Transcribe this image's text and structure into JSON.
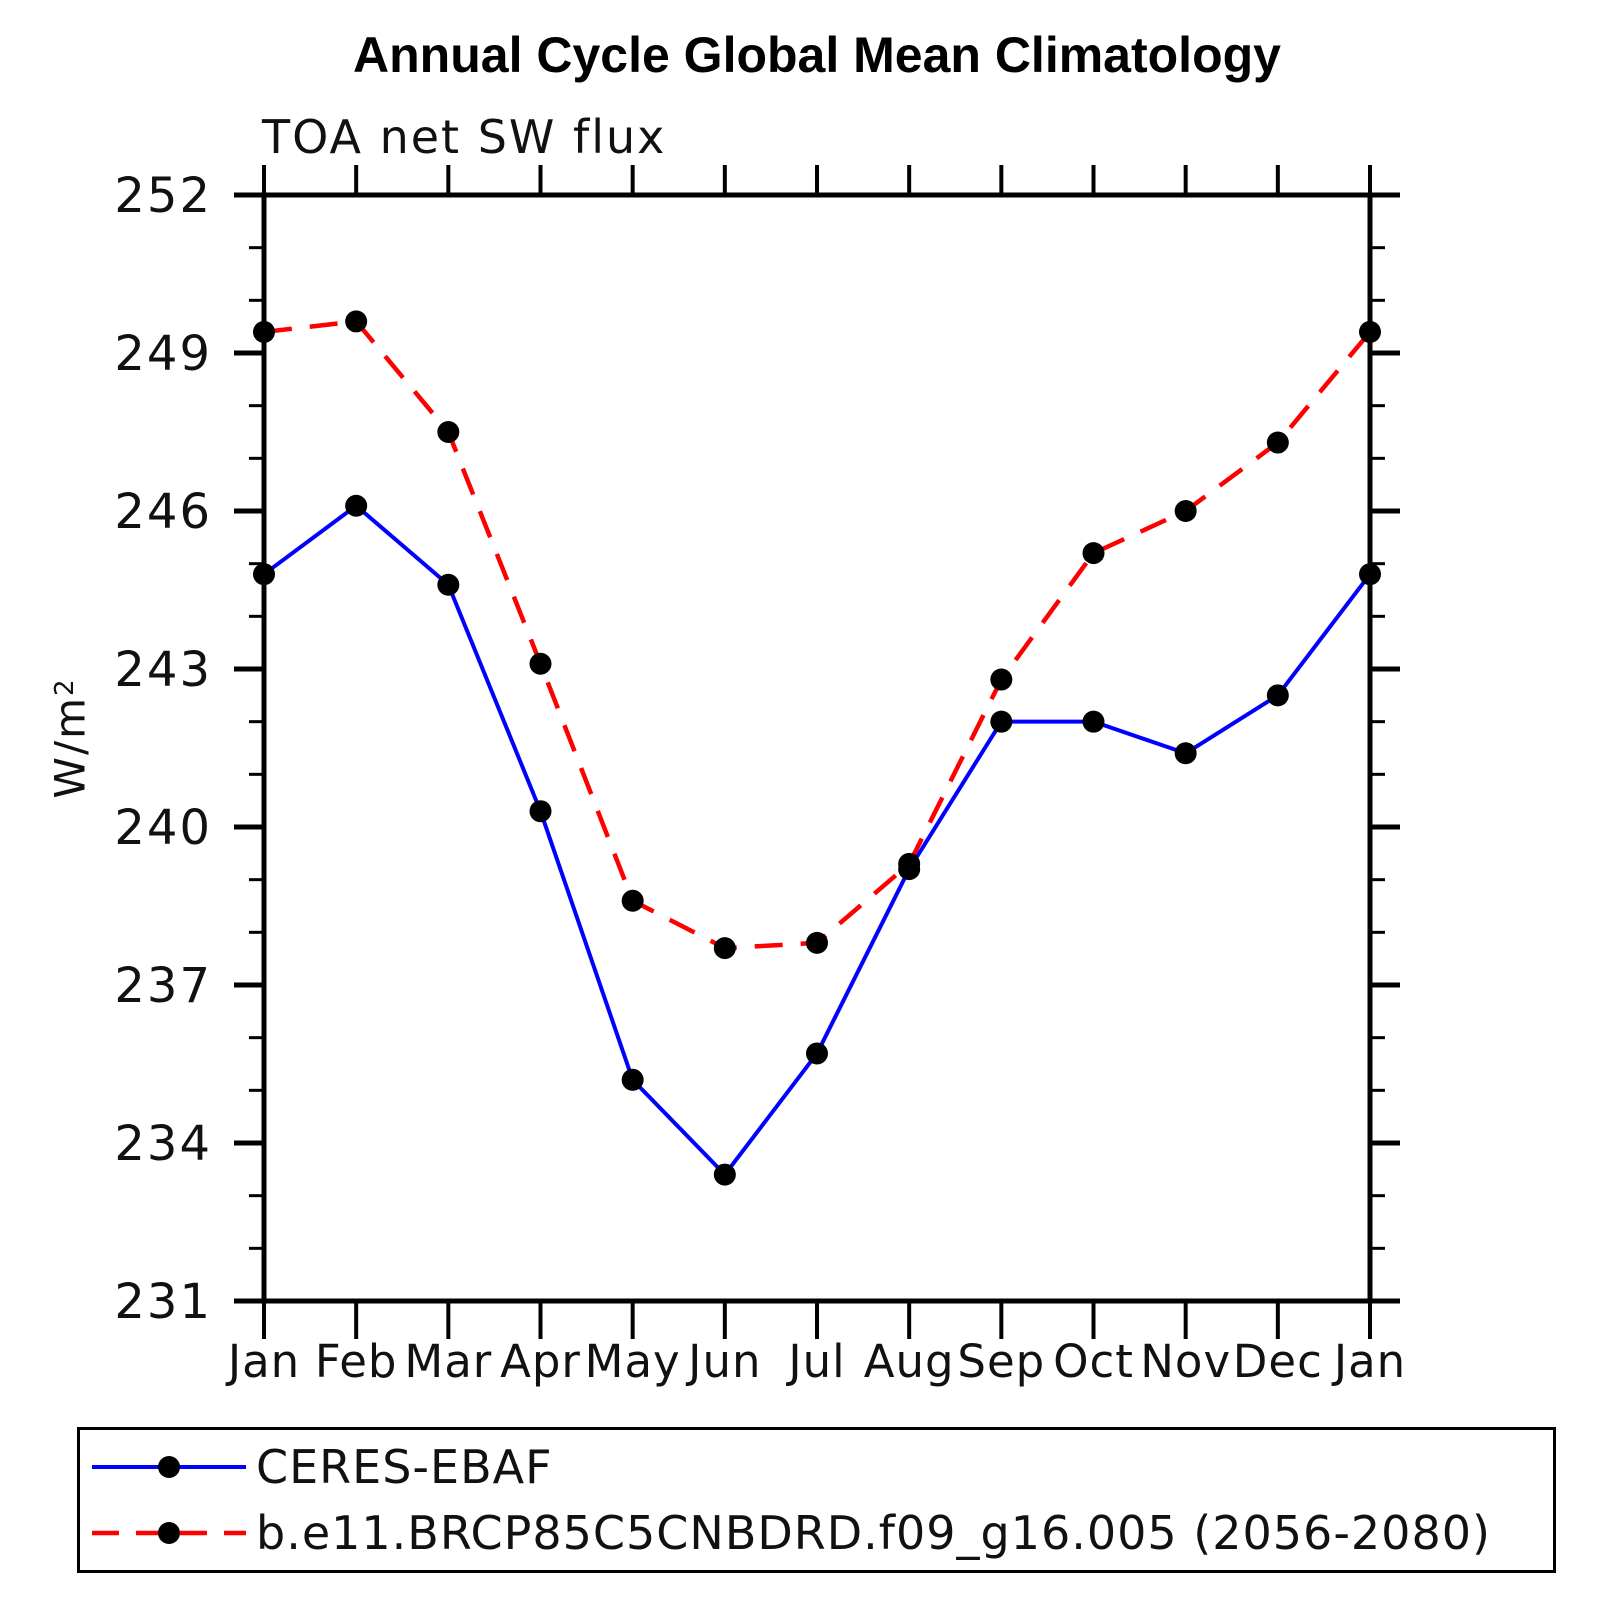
{
  "title": "Annual Cycle Global Mean Climatology",
  "subtitle": "TOA net SW flux",
  "y_axis": {
    "label_base": "W/m",
    "label_exponent": "2"
  },
  "legend": {
    "items": [
      {
        "label": "CERES-EBAF"
      },
      {
        "label": "b.e11.BRCP85C5CNBDRD.f09_g16.005 (2056-2080)"
      }
    ]
  },
  "colors": {
    "obs_line": "#0000ff",
    "model_line": "#ff0000",
    "marker": "#000000",
    "axis": "#000000"
  },
  "chart_data": {
    "type": "line",
    "title": "Annual Cycle Global Mean Climatology",
    "subtitle": "TOA net SW flux",
    "xlabel": "",
    "ylabel": "W/m^2",
    "categories": [
      "Jan",
      "Feb",
      "Mar",
      "Apr",
      "May",
      "Jun",
      "Jul",
      "Aug",
      "Sep",
      "Oct",
      "Nov",
      "Dec",
      "Jan"
    ],
    "ylim": [
      231,
      252
    ],
    "ytick_major": [
      231,
      234,
      237,
      240,
      243,
      246,
      249,
      252
    ],
    "ytick_minor_step": 1,
    "grid": false,
    "legend_position": "bottom",
    "series": [
      {
        "name": "CERES-EBAF",
        "color": "#0000ff",
        "style": "solid",
        "marker": "circle",
        "marker_color": "#000000",
        "values": [
          244.8,
          246.1,
          244.6,
          240.3,
          235.2,
          233.4,
          235.7,
          239.2,
          242.0,
          242.0,
          241.4,
          242.5,
          244.8
        ]
      },
      {
        "name": "b.e11.BRCP85C5CNBDRD.f09_g16.005 (2056-2080)",
        "color": "#ff0000",
        "style": "dashed",
        "marker": "circle",
        "marker_color": "#000000",
        "values": [
          249.4,
          249.6,
          247.5,
          243.1,
          238.6,
          237.7,
          237.8,
          239.3,
          242.8,
          245.2,
          246.0,
          247.3,
          249.4
        ]
      }
    ]
  }
}
